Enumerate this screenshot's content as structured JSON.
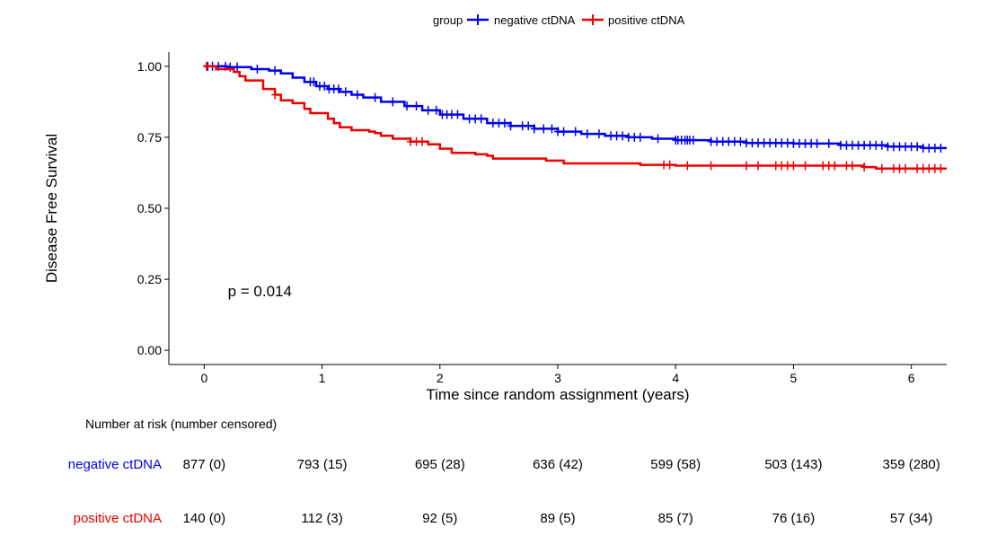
{
  "chart_data": {
    "type": "line",
    "subtype": "kaplan-meier",
    "xlabel": "Time since random assignment (years)",
    "ylabel": "Disease Free Survival",
    "xlim": [
      -0.3,
      6.3
    ],
    "ylim": [
      -0.05,
      1.05
    ],
    "x_ticks": [
      0,
      1,
      2,
      3,
      4,
      5,
      6
    ],
    "y_ticks": [
      0.0,
      0.25,
      0.5,
      0.75,
      1.0
    ],
    "x_tick_labels": [
      "0",
      "1",
      "2",
      "3",
      "4",
      "5",
      "6"
    ],
    "y_tick_labels": [
      "0.00",
      "0.25",
      "0.50",
      "0.75",
      "1.00"
    ],
    "grid": false,
    "annotation": "p = 0.014",
    "annotation_at": {
      "x": 0.2,
      "y": 0.19
    },
    "legend": {
      "title": "group",
      "position": "top",
      "entries": [
        "negative ctDNA",
        "positive ctDNA"
      ]
    },
    "series": [
      {
        "name": "negative ctDNA",
        "color": "#0000ee",
        "steps": [
          [
            0,
            1.0
          ],
          [
            0.2,
            0.997
          ],
          [
            0.4,
            0.99
          ],
          [
            0.55,
            0.985
          ],
          [
            0.65,
            0.975
          ],
          [
            0.75,
            0.96
          ],
          [
            0.85,
            0.945
          ],
          [
            0.95,
            0.93
          ],
          [
            1.05,
            0.92
          ],
          [
            1.15,
            0.91
          ],
          [
            1.25,
            0.9
          ],
          [
            1.35,
            0.89
          ],
          [
            1.5,
            0.875
          ],
          [
            1.7,
            0.86
          ],
          [
            1.85,
            0.845
          ],
          [
            2.0,
            0.83
          ],
          [
            2.2,
            0.815
          ],
          [
            2.4,
            0.8
          ],
          [
            2.6,
            0.79
          ],
          [
            2.8,
            0.78
          ],
          [
            3.0,
            0.77
          ],
          [
            3.2,
            0.762
          ],
          [
            3.4,
            0.755
          ],
          [
            3.6,
            0.75
          ],
          [
            3.8,
            0.745
          ],
          [
            4.0,
            0.74
          ],
          [
            4.3,
            0.735
          ],
          [
            4.6,
            0.73
          ],
          [
            5.0,
            0.728
          ],
          [
            5.4,
            0.722
          ],
          [
            5.8,
            0.717
          ],
          [
            6.1,
            0.712
          ],
          [
            6.3,
            0.712
          ]
        ],
        "censors": [
          0.03,
          0.07,
          0.12,
          0.18,
          0.22,
          0.28,
          0.45,
          0.6,
          0.9,
          0.93,
          0.98,
          1.02,
          1.06,
          1.1,
          1.14,
          1.2,
          1.3,
          1.45,
          1.6,
          1.72,
          1.8,
          1.9,
          1.97,
          2.02,
          2.06,
          2.1,
          2.15,
          2.25,
          2.3,
          2.35,
          2.45,
          2.5,
          2.55,
          2.6,
          2.7,
          2.75,
          2.8,
          2.88,
          2.95,
          3.0,
          3.05,
          3.15,
          3.25,
          3.35,
          3.45,
          3.5,
          3.55,
          3.6,
          3.65,
          3.7,
          3.85,
          4.0,
          4.02,
          4.05,
          4.08,
          4.1,
          4.12,
          4.15,
          4.3,
          4.35,
          4.4,
          4.45,
          4.5,
          4.55,
          4.6,
          4.65,
          4.7,
          4.75,
          4.8,
          4.85,
          4.9,
          4.95,
          5.0,
          5.05,
          5.1,
          5.15,
          5.2,
          5.3,
          5.4,
          5.45,
          5.5,
          5.55,
          5.6,
          5.65,
          5.7,
          5.75,
          5.8,
          5.85,
          5.9,
          5.95,
          6.0,
          6.05,
          6.1,
          6.15,
          6.2,
          6.25
        ]
      },
      {
        "name": "positive ctDNA",
        "color": "#ee0000",
        "steps": [
          [
            0,
            1.0
          ],
          [
            0.1,
            0.99
          ],
          [
            0.25,
            0.98
          ],
          [
            0.3,
            0.965
          ],
          [
            0.35,
            0.95
          ],
          [
            0.5,
            0.92
          ],
          [
            0.6,
            0.9
          ],
          [
            0.65,
            0.88
          ],
          [
            0.75,
            0.87
          ],
          [
            0.85,
            0.85
          ],
          [
            0.9,
            0.835
          ],
          [
            1.05,
            0.815
          ],
          [
            1.1,
            0.8
          ],
          [
            1.15,
            0.785
          ],
          [
            1.25,
            0.775
          ],
          [
            1.4,
            0.77
          ],
          [
            1.45,
            0.765
          ],
          [
            1.5,
            0.755
          ],
          [
            1.6,
            0.745
          ],
          [
            1.75,
            0.735
          ],
          [
            1.9,
            0.725
          ],
          [
            2.0,
            0.71
          ],
          [
            2.1,
            0.695
          ],
          [
            2.3,
            0.69
          ],
          [
            2.4,
            0.685
          ],
          [
            2.45,
            0.675
          ],
          [
            2.9,
            0.668
          ],
          [
            3.05,
            0.658
          ],
          [
            3.7,
            0.653
          ],
          [
            4.0,
            0.65
          ],
          [
            5.0,
            0.65
          ],
          [
            5.6,
            0.645
          ],
          [
            5.7,
            0.64
          ],
          [
            6.3,
            0.64
          ]
        ],
        "censors": [
          0.02,
          0.6,
          1.75,
          1.8,
          1.85,
          3.9,
          3.95,
          4.1,
          4.3,
          4.6,
          4.7,
          4.85,
          4.9,
          4.95,
          5.0,
          5.1,
          5.25,
          5.3,
          5.35,
          5.45,
          5.5,
          5.6,
          5.75,
          5.85,
          5.9,
          5.95,
          6.05,
          6.1,
          6.15,
          6.2,
          6.25
        ]
      }
    ]
  },
  "risk_table": {
    "title": "Number at risk (number censored)",
    "rows": [
      {
        "label": "negative ctDNA",
        "color": "#0000ee",
        "values": [
          "877 (0)",
          "793 (15)",
          "695 (28)",
          "636 (42)",
          "599 (58)",
          "503 (143)",
          "359 (280)"
        ]
      },
      {
        "label": "positive ctDNA",
        "color": "#ee0000",
        "values": [
          "140 (0)",
          "112 (3)",
          "92 (5)",
          "89 (5)",
          "85 (7)",
          "76 (16)",
          "57 (34)"
        ]
      }
    ]
  }
}
